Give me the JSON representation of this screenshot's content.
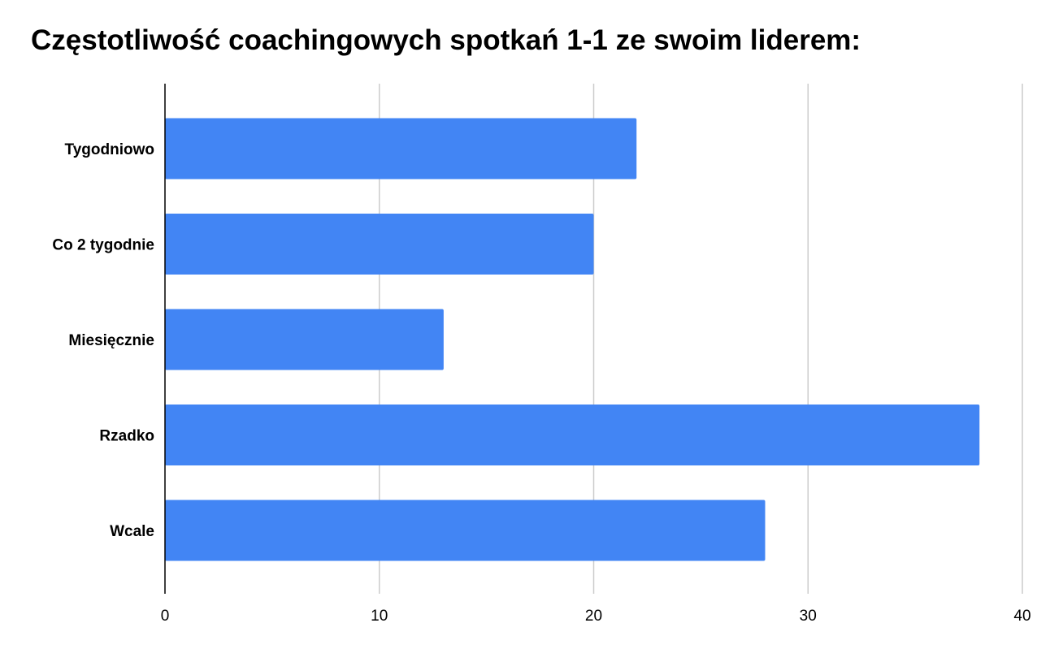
{
  "chart_data": {
    "type": "bar",
    "orientation": "horizontal",
    "title": "Częstotliwość coachingowych spotkań 1-1 ze swoim liderem:",
    "categories": [
      "Tygodniowo",
      "Co 2 tygodnie",
      "Miesięcznie",
      "Rzadko",
      "Wcale"
    ],
    "values": [
      22,
      20,
      13,
      38,
      28
    ],
    "xlim": [
      0,
      40
    ],
    "xticks": [
      0,
      10,
      20,
      30,
      40
    ],
    "grid": true,
    "legend": "none",
    "colors": {
      "bar": "#4285f4",
      "grid": "#cccccc",
      "axis": "#000000"
    }
  }
}
